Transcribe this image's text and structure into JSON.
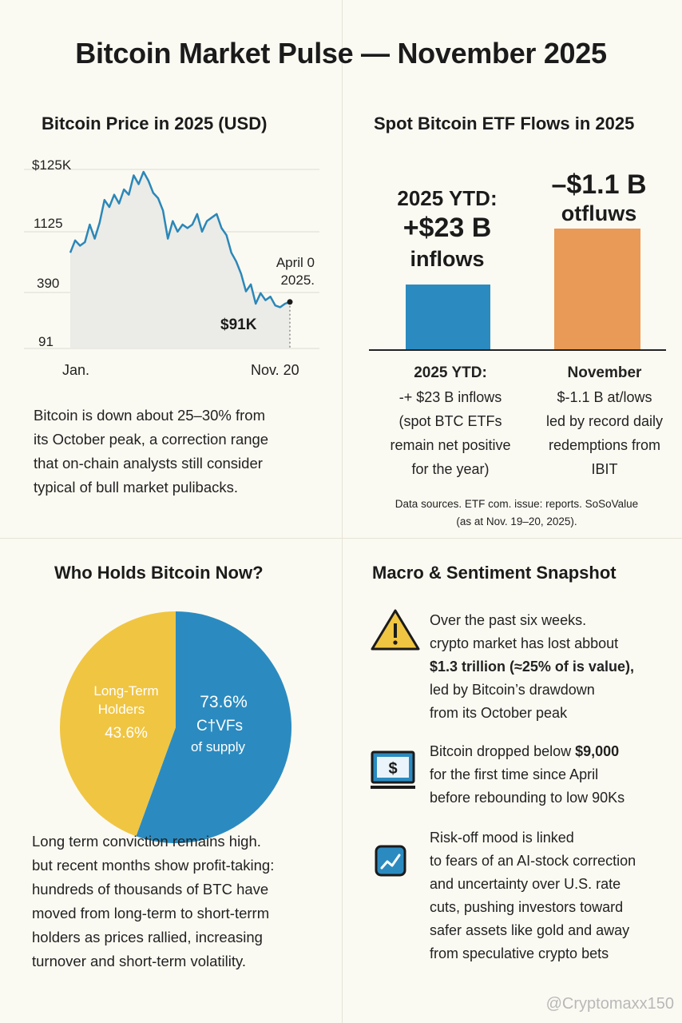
{
  "title": "Bitcoin Market Pulse — November 2025",
  "price_panel": {
    "title": "Bitcoin Price in 2025 (USD)",
    "y_ticks": [
      "$125K",
      "1125",
      "390",
      "91"
    ],
    "x_ticks": [
      "Jan.",
      "Nov. 20"
    ],
    "note_line1": "April 0",
    "note_line2": "2025.",
    "current_label": "$91K",
    "line_color": "#2b87b8",
    "area_color": "#ebebe7",
    "chart_data": {
      "type": "area",
      "ylabel": "",
      "xlabel": "",
      "y_tick_labels": [
        "$125K",
        "1125",
        "390",
        "91"
      ],
      "x_tick_labels": [
        "Jan.",
        "Nov. 20"
      ],
      "values": [
        0.54,
        0.61,
        0.58,
        0.6,
        0.7,
        0.62,
        0.71,
        0.84,
        0.8,
        0.87,
        0.82,
        0.9,
        0.87,
        0.98,
        0.93,
        1.0,
        0.95,
        0.88,
        0.85,
        0.78,
        0.62,
        0.72,
        0.66,
        0.7,
        0.68,
        0.7,
        0.76,
        0.66,
        0.72,
        0.74,
        0.76,
        0.68,
        0.64,
        0.54,
        0.49,
        0.42,
        0.32,
        0.36,
        0.25,
        0.31,
        0.27,
        0.29,
        0.24,
        0.23,
        0.25,
        0.26
      ]
    },
    "paragraph_lines": [
      "Bitcoin is down about 25–30% from",
      "its October peak, a correction range",
      "that on-chain analysts still consider",
      "typical of bull market pulibacks."
    ]
  },
  "etf_panel": {
    "title": "Spot Bitcoin ETF Flows in 2025",
    "ytd_big_line1": "2025 YTD:",
    "ytd_big_line2": "+$23 B",
    "ytd_big_line3": "inflows",
    "nov_big_line1": "–$1.1 B",
    "nov_big_line2": "otfluws",
    "inflow_color": "#2b8bc0",
    "outflow_color": "#e99a56",
    "chart_data": {
      "type": "bar",
      "categories": [
        "2025 YTD",
        "November"
      ],
      "values": [
        23,
        -1.1
      ]
    },
    "col1_lines": [
      "2025 YTD:",
      "-+ $23 B inflows",
      "(spot BTC ETFs",
      "remain net positive",
      "for the year)"
    ],
    "col2_lines": [
      "November",
      "$-1.1 B at/lows",
      "led by record daily",
      "redemptions from",
      "IBIT"
    ],
    "sources_line1": "Data sources. ETF com. issue: reports. SoSoValue",
    "sources_line2": "(as at Nov. 19–20, 2025)."
  },
  "holders_panel": {
    "title": "Who Holds Bitcoin Now?",
    "yellow_color": "#f0c542",
    "blue_color": "#2b8bc0",
    "lth_label_line1": "Long-Term",
    "lth_label_line2": "Holders",
    "lth_pct": "43.6%",
    "other_pct": "73.6%",
    "other_label_line1": "C†VFs",
    "other_label_line2": "of supply",
    "chart_data": {
      "type": "pie",
      "labels": [
        "Long-Term Holders",
        "C†VFs of supply"
      ],
      "values": [
        43.6,
        73.6
      ]
    },
    "paragraph_lines": [
      "Long term conviction remains high.",
      "but recent months show profit-taking:",
      "hundreds of thousands of BTC have",
      "moved from long-term to short-terrm",
      "holders as prices rallied, increasing",
      "turnover and short-term volatility."
    ]
  },
  "macro_panel": {
    "title": "Macro & Sentiment Snapshot",
    "items": [
      {
        "icon": "warning-icon",
        "lines": [
          "Over the past six weeks.",
          "crypto market has lost abbout"
        ],
        "bold": "$1.3 trillion (≈25% of is value),",
        "lines_after": [
          "led by Bitcoin’s drawdown",
          "from its October peak"
        ]
      },
      {
        "icon": "dollar-monitor-icon",
        "line1_plain": "Bitcoin dropped below ",
        "line1_bold": "$9,000",
        "lines_after": [
          "for the first time since April",
          "before rebounding to low  90Ks"
        ]
      },
      {
        "icon": "chart-trend-icon",
        "lines": [
          "Risk-off mood is linked",
          "to fears of an AI-stock correction",
          "and uncertainty over U.S. rate",
          "cuts, pushing investors toward",
          "safer assets like gold and away",
          "from speculative crypto bets"
        ]
      }
    ]
  },
  "watermark": "@Cryptomaxx150"
}
